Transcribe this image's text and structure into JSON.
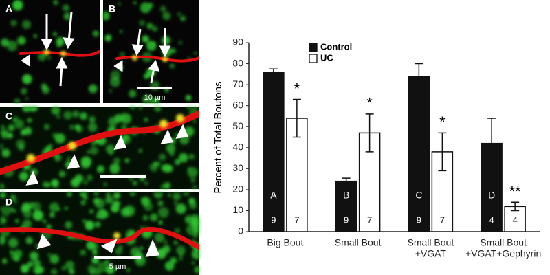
{
  "panels": {
    "labels": [
      "A",
      "B",
      "C",
      "D"
    ],
    "scale_bars": [
      "10 µm",
      "5 µm"
    ]
  },
  "chart_data": {
    "type": "bar",
    "y_label": "Percent of Total Boutons",
    "categories": [
      [
        "Big Bout"
      ],
      [
        "Small Bout"
      ],
      [
        "Small Bout",
        "+VGAT"
      ],
      [
        "Small Bout",
        "+VGAT+Gephyrin"
      ]
    ],
    "bar_letters": [
      "A",
      "B",
      "C",
      "D"
    ],
    "series": [
      {
        "name": "Control",
        "color": "#111111",
        "values": [
          76,
          24,
          74,
          42
        ],
        "errors": [
          1.5,
          1.5,
          6,
          12
        ],
        "n": [
          9,
          9,
          9,
          4
        ]
      },
      {
        "name": "UC",
        "color": "#ffffff",
        "values": [
          54,
          47,
          38,
          12
        ],
        "errors": [
          9,
          9,
          9,
          2
        ],
        "n": [
          7,
          7,
          7,
          4
        ],
        "significance": [
          "*",
          "*",
          "*",
          "**"
        ]
      }
    ],
    "ylim": [
      0,
      90
    ],
    "yticks": [
      0,
      10,
      20,
      30,
      40,
      50,
      60,
      70,
      80,
      90
    ],
    "grid": false,
    "legend": "top-left"
  }
}
